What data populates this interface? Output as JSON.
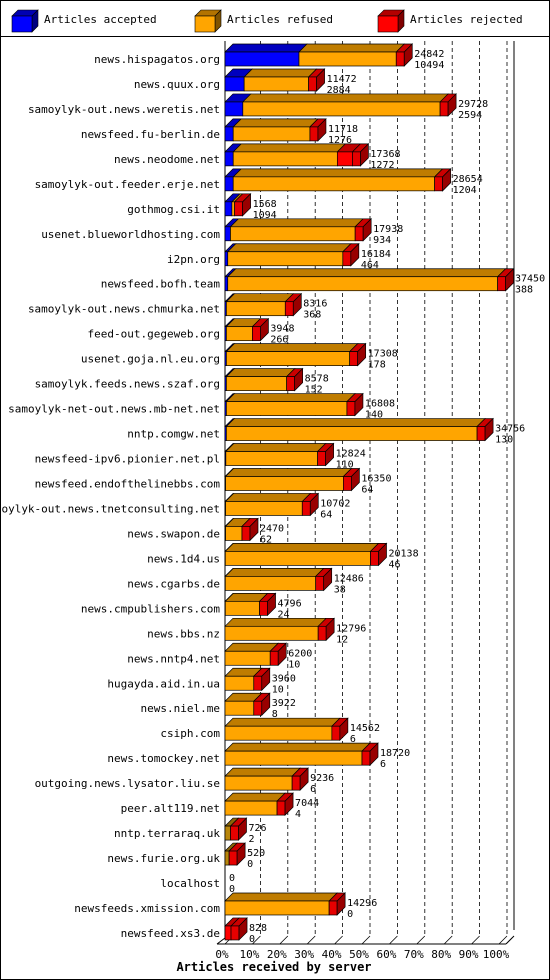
{
  "legend": [
    {
      "label": "Articles accepted",
      "color": "#0000ff"
    },
    {
      "label": "Articles refused",
      "color": "#ffa500"
    },
    {
      "label": "Articles rejected",
      "color": "#ff0000"
    }
  ],
  "chart_data": {
    "type": "bar",
    "orientation": "horizontal",
    "stacked": true,
    "three_d": true,
    "xlabel": "Articles received by server",
    "x_tick_labels": [
      "0%",
      "10%",
      "20%",
      "30%",
      "40%",
      "50%",
      "60%",
      "70%",
      "80%",
      "90%",
      "100%"
    ],
    "x_range": [
      0,
      100
    ],
    "grid": "dashed-vertical",
    "legend_position": "top",
    "series_colors": {
      "accepted": "#0000ff",
      "refused": "#ffa500",
      "rejected": "#ff0000",
      "zero_refused_other": "#b8860b"
    },
    "categories": [
      {
        "server": "news.hispagatos.org",
        "total": 24842,
        "accepted": 10494,
        "pct_accepted": 27.0,
        "pct_refused": 35.5,
        "pct_rejected": 0
      },
      {
        "server": "news.quux.org",
        "total": 11472,
        "accepted": 2884,
        "pct_accepted": 7.0,
        "pct_refused": 23.5,
        "pct_rejected": 0
      },
      {
        "server": "samoylyk-out.news.weretis.net",
        "total": 29728,
        "accepted": 2594,
        "pct_accepted": 6.5,
        "pct_refused": 72.0,
        "pct_rejected": 0
      },
      {
        "server": "newsfeed.fu-berlin.de",
        "total": 11718,
        "accepted": 1276,
        "pct_accepted": 3.0,
        "pct_refused": 28.0,
        "pct_rejected": 0
      },
      {
        "server": "news.neodome.net",
        "total": 17368,
        "accepted": 1272,
        "pct_accepted": 3.0,
        "pct_refused": 38.0,
        "pct_rejected": 5.5
      },
      {
        "server": "samoylyk-out.feeder.erje.net",
        "total": 28654,
        "accepted": 1204,
        "pct_accepted": 3.0,
        "pct_refused": 73.5,
        "pct_rejected": 0
      },
      {
        "server": "gothmog.csi.it",
        "total": 1568,
        "accepted": 1094,
        "pct_accepted": 2.5,
        "pct_refused": 1.0,
        "pct_rejected": 0
      },
      {
        "server": "usenet.blueworldhosting.com",
        "total": 17938,
        "accepted": 934,
        "pct_accepted": 2.0,
        "pct_refused": 45.5,
        "pct_rejected": 0
      },
      {
        "server": "i2pn.org",
        "total": 16184,
        "accepted": 464,
        "pct_accepted": 1.0,
        "pct_refused": 42.0,
        "pct_rejected": 0
      },
      {
        "server": "newsfeed.bofh.team",
        "total": 37450,
        "accepted": 388,
        "pct_accepted": 1.0,
        "pct_refused": 98.5,
        "pct_rejected": 0
      },
      {
        "server": "samoylyk-out.news.chmurka.net",
        "total": 8316,
        "accepted": 368,
        "pct_accepted": 0.5,
        "pct_refused": 21.5,
        "pct_rejected": 0
      },
      {
        "server": "feed-out.gegeweb.org",
        "total": 3948,
        "accepted": 266,
        "pct_accepted": 0.5,
        "pct_refused": 9.5,
        "pct_rejected": 0
      },
      {
        "server": "usenet.goja.nl.eu.org",
        "total": 17308,
        "accepted": 178,
        "pct_accepted": 0.5,
        "pct_refused": 45.0,
        "pct_rejected": 0
      },
      {
        "server": "samoylyk.feeds.news.szaf.org",
        "total": 8578,
        "accepted": 152,
        "pct_accepted": 0.5,
        "pct_refused": 22.0,
        "pct_rejected": 0
      },
      {
        "server": "samoylyk-net-out.news.mb-net.net",
        "total": 16808,
        "accepted": 140,
        "pct_accepted": 0.5,
        "pct_refused": 44.0,
        "pct_rejected": 0
      },
      {
        "server": "nntp.comgw.net",
        "total": 34756,
        "accepted": 130,
        "pct_accepted": 0.5,
        "pct_refused": 91.5,
        "pct_rejected": 0
      },
      {
        "server": "newsfeed-ipv6.pionier.net.pl",
        "total": 12824,
        "accepted": 110,
        "pct_accepted": 0.3,
        "pct_refused": 33.5,
        "pct_rejected": 0
      },
      {
        "server": "newsfeed.endofthelinebbs.com",
        "total": 16350,
        "accepted": 64,
        "pct_accepted": 0.2,
        "pct_refused": 43.0,
        "pct_rejected": 0
      },
      {
        "server": "samoylyk-out.news.tnetconsulting.net",
        "total": 10702,
        "accepted": 64,
        "pct_accepted": 0.2,
        "pct_refused": 28.0,
        "pct_rejected": 0
      },
      {
        "server": "news.swapon.de",
        "total": 2470,
        "accepted": 62,
        "pct_accepted": 0.2,
        "pct_refused": 6.0,
        "pct_rejected": 0
      },
      {
        "server": "news.1d4.us",
        "total": 20138,
        "accepted": 46,
        "pct_accepted": 0.1,
        "pct_refused": 53.0,
        "pct_rejected": 0
      },
      {
        "server": "news.cgarbs.de",
        "total": 12486,
        "accepted": 38,
        "pct_accepted": 0.1,
        "pct_refused": 33.0,
        "pct_rejected": 0
      },
      {
        "server": "news.cmpublishers.com",
        "total": 4796,
        "accepted": 24,
        "pct_accepted": 0.1,
        "pct_refused": 12.5,
        "pct_rejected": 0
      },
      {
        "server": "news.bbs.nz",
        "total": 12796,
        "accepted": 12,
        "pct_accepted": 0,
        "pct_refused": 34.0,
        "pct_rejected": 0
      },
      {
        "server": "news.nntp4.net",
        "total": 6200,
        "accepted": 10,
        "pct_accepted": 0,
        "pct_refused": 16.5,
        "pct_rejected": 0
      },
      {
        "server": "hugayda.aid.in.ua",
        "total": 3960,
        "accepted": 10,
        "pct_accepted": 0,
        "pct_refused": 10.5,
        "pct_rejected": 0
      },
      {
        "server": "news.niel.me",
        "total": 3922,
        "accepted": 8,
        "pct_accepted": 0,
        "pct_refused": 10.5,
        "pct_rejected": 0
      },
      {
        "server": "csiph.com",
        "total": 14562,
        "accepted": 6,
        "pct_accepted": 0,
        "pct_refused": 39.0,
        "pct_rejected": 0
      },
      {
        "server": "news.tomockey.net",
        "total": 18720,
        "accepted": 6,
        "pct_accepted": 0,
        "pct_refused": 50.0,
        "pct_rejected": 0
      },
      {
        "server": "outgoing.news.lysator.liu.se",
        "total": 9236,
        "accepted": 6,
        "pct_accepted": 0,
        "pct_refused": 24.5,
        "pct_rejected": 0
      },
      {
        "server": "peer.alt119.net",
        "total": 7044,
        "accepted": 4,
        "pct_accepted": 0,
        "pct_refused": 19.0,
        "pct_rejected": 0
      },
      {
        "server": "nntp.terraraq.uk",
        "total": 726,
        "accepted": 2,
        "pct_accepted": 0,
        "pct_refused": 2.0,
        "pct_rejected": 0,
        "variant": "other"
      },
      {
        "server": "news.furie.org.uk",
        "total": 520,
        "accepted": 0,
        "pct_accepted": 0,
        "pct_refused": 1.5,
        "pct_rejected": 0,
        "variant": "other"
      },
      {
        "server": "localhost",
        "total": 0,
        "accepted": 0,
        "pct_accepted": 0,
        "pct_refused": 0,
        "pct_rejected": 0
      },
      {
        "server": "newsfeeds.xmission.com",
        "total": 14296,
        "accepted": 0,
        "pct_accepted": 0,
        "pct_refused": 38.0,
        "pct_rejected": 0
      },
      {
        "server": "newsfeed.xs3.de",
        "total": 828,
        "accepted": 0,
        "pct_accepted": 0,
        "pct_refused": 0,
        "pct_rejected": 2.2
      }
    ]
  }
}
